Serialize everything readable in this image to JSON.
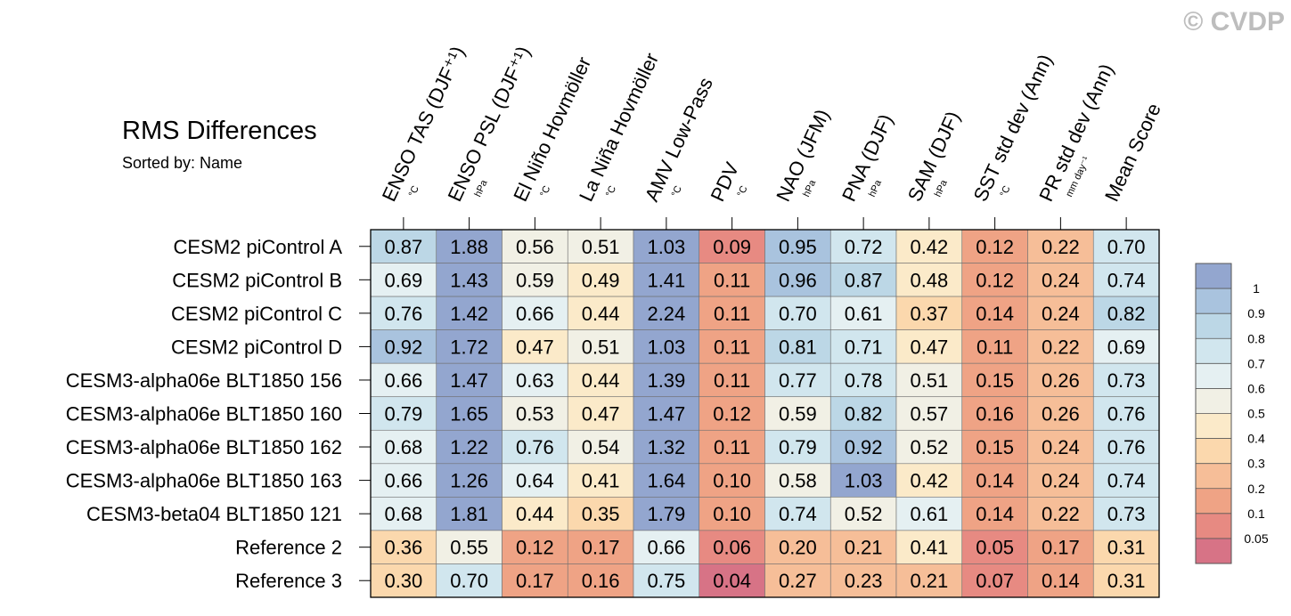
{
  "watermark": "© CVDP",
  "chart_data": {
    "type": "heatmap",
    "title": "RMS Differences",
    "subtitle": "Sorted by: Name",
    "columns": [
      {
        "name": "ENSO TAS (DJF⁺¹)",
        "unit": "°C"
      },
      {
        "name": "ENSO PSL (DJF⁺¹)",
        "unit": "hPa"
      },
      {
        "name": "El Niño Hovmöller",
        "unit": "°C"
      },
      {
        "name": "La Niña Hovmöller",
        "unit": "°C"
      },
      {
        "name": "AMV Low-Pass",
        "unit": "°C"
      },
      {
        "name": "PDV",
        "unit": "°C"
      },
      {
        "name": "NAO (JFM)",
        "unit": "hPa"
      },
      {
        "name": "PNA (DJF)",
        "unit": "hPa"
      },
      {
        "name": "SAM (DJF)",
        "unit": "hPa"
      },
      {
        "name": "SST std dev (Ann)",
        "unit": "°C"
      },
      {
        "name": "PR std dev (Ann)",
        "unit": "mm day⁻¹"
      },
      {
        "name": "Mean Score",
        "unit": ""
      }
    ],
    "rows": [
      "CESM2 piControl A",
      "CESM2 piControl B",
      "CESM2 piControl C",
      "CESM2 piControl D",
      "CESM3-alpha06e BLT1850 156",
      "CESM3-alpha06e BLT1850 160",
      "CESM3-alpha06e BLT1850 162",
      "CESM3-alpha06e BLT1850 163",
      "CESM3-beta04 BLT1850 121",
      "Reference 2",
      "Reference 3"
    ],
    "values": [
      [
        0.87,
        1.88,
        0.56,
        0.51,
        1.03,
        0.09,
        0.95,
        0.72,
        0.42,
        0.12,
        0.22,
        0.7
      ],
      [
        0.69,
        1.43,
        0.59,
        0.49,
        1.41,
        0.11,
        0.96,
        0.87,
        0.48,
        0.12,
        0.24,
        0.74
      ],
      [
        0.76,
        1.42,
        0.66,
        0.44,
        2.24,
        0.11,
        0.7,
        0.61,
        0.37,
        0.14,
        0.24,
        0.82
      ],
      [
        0.92,
        1.72,
        0.47,
        0.51,
        1.03,
        0.11,
        0.81,
        0.71,
        0.47,
        0.11,
        0.22,
        0.69
      ],
      [
        0.66,
        1.47,
        0.63,
        0.44,
        1.39,
        0.11,
        0.77,
        0.78,
        0.51,
        0.15,
        0.26,
        0.73
      ],
      [
        0.79,
        1.65,
        0.53,
        0.47,
        1.47,
        0.12,
        0.59,
        0.82,
        0.57,
        0.16,
        0.26,
        0.76
      ],
      [
        0.68,
        1.22,
        0.76,
        0.54,
        1.32,
        0.11,
        0.79,
        0.92,
        0.52,
        0.15,
        0.24,
        0.76
      ],
      [
        0.66,
        1.26,
        0.64,
        0.41,
        1.64,
        0.1,
        0.58,
        1.03,
        0.42,
        0.14,
        0.24,
        0.74
      ],
      [
        0.68,
        1.81,
        0.44,
        0.35,
        1.79,
        0.1,
        0.74,
        0.52,
        0.61,
        0.14,
        0.22,
        0.73
      ],
      [
        0.36,
        0.55,
        0.12,
        0.17,
        0.66,
        0.06,
        0.2,
        0.21,
        0.41,
        0.05,
        0.17,
        0.31
      ],
      [
        0.3,
        0.7,
        0.17,
        0.16,
        0.75,
        0.04,
        0.27,
        0.23,
        0.21,
        0.07,
        0.14,
        0.31
      ]
    ],
    "colorbar": {
      "labels": [
        "1",
        "0.9",
        "0.8",
        "0.7",
        "0.6",
        "0.5",
        "0.4",
        "0.3",
        "0.2",
        "0.1",
        "0.05"
      ],
      "levels": [
        1.0,
        0.9,
        0.8,
        0.7,
        0.6,
        0.5,
        0.4,
        0.3,
        0.2,
        0.1,
        0.05
      ],
      "colors": [
        "#93a6cf",
        "#a9c3de",
        "#bcd7e6",
        "#d1e6ee",
        "#e5f0f2",
        "#f1f0e5",
        "#fbeac9",
        "#fbd8ad",
        "#f6be98",
        "#efa385",
        "#e78a82",
        "#d77386"
      ]
    }
  }
}
